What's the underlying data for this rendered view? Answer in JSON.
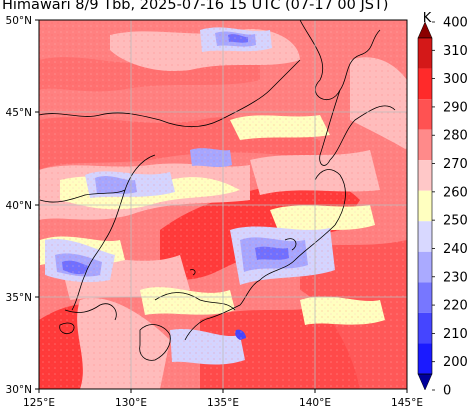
{
  "title": "Himawari 8/9 Tbb, 2025-07-16 15 UTC (07-17 00 JST)",
  "map": {
    "lat_ticks": [
      "50°N",
      "45°N",
      "40°N",
      "35°N",
      "30°N"
    ],
    "lon_ticks": [
      "125°E",
      "130°E",
      "135°E",
      "140°E",
      "145°E"
    ],
    "extent": {
      "lon_min": 125,
      "lon_max": 145,
      "lat_min": 30,
      "lat_max": 50
    },
    "gridlines": true
  },
  "colorbar": {
    "unit": "K",
    "levels": [
      "400",
      "310",
      "300",
      "290",
      "280",
      "270",
      "260",
      "250",
      "240",
      "230",
      "220",
      "210",
      "200",
      "0"
    ],
    "colors": [
      "#8b0000",
      "#d41818",
      "#ff2a2a",
      "#ff5252",
      "#ff8a8a",
      "#ffc8c8",
      "#ffffc0",
      "#d8d8ff",
      "#aaaaff",
      "#7777ff",
      "#4545ff",
      "#1a1aff",
      "#00009a"
    ],
    "extend": "both"
  },
  "palette": {
    "t290": "#ff4c4c",
    "t280": "#ff8080",
    "t270": "#ffbcbc",
    "t260": "#ffffc0",
    "t250": "#d4d4ff",
    "t240": "#a6a6ff",
    "t230": "#7070ff",
    "land": "#000000"
  }
}
